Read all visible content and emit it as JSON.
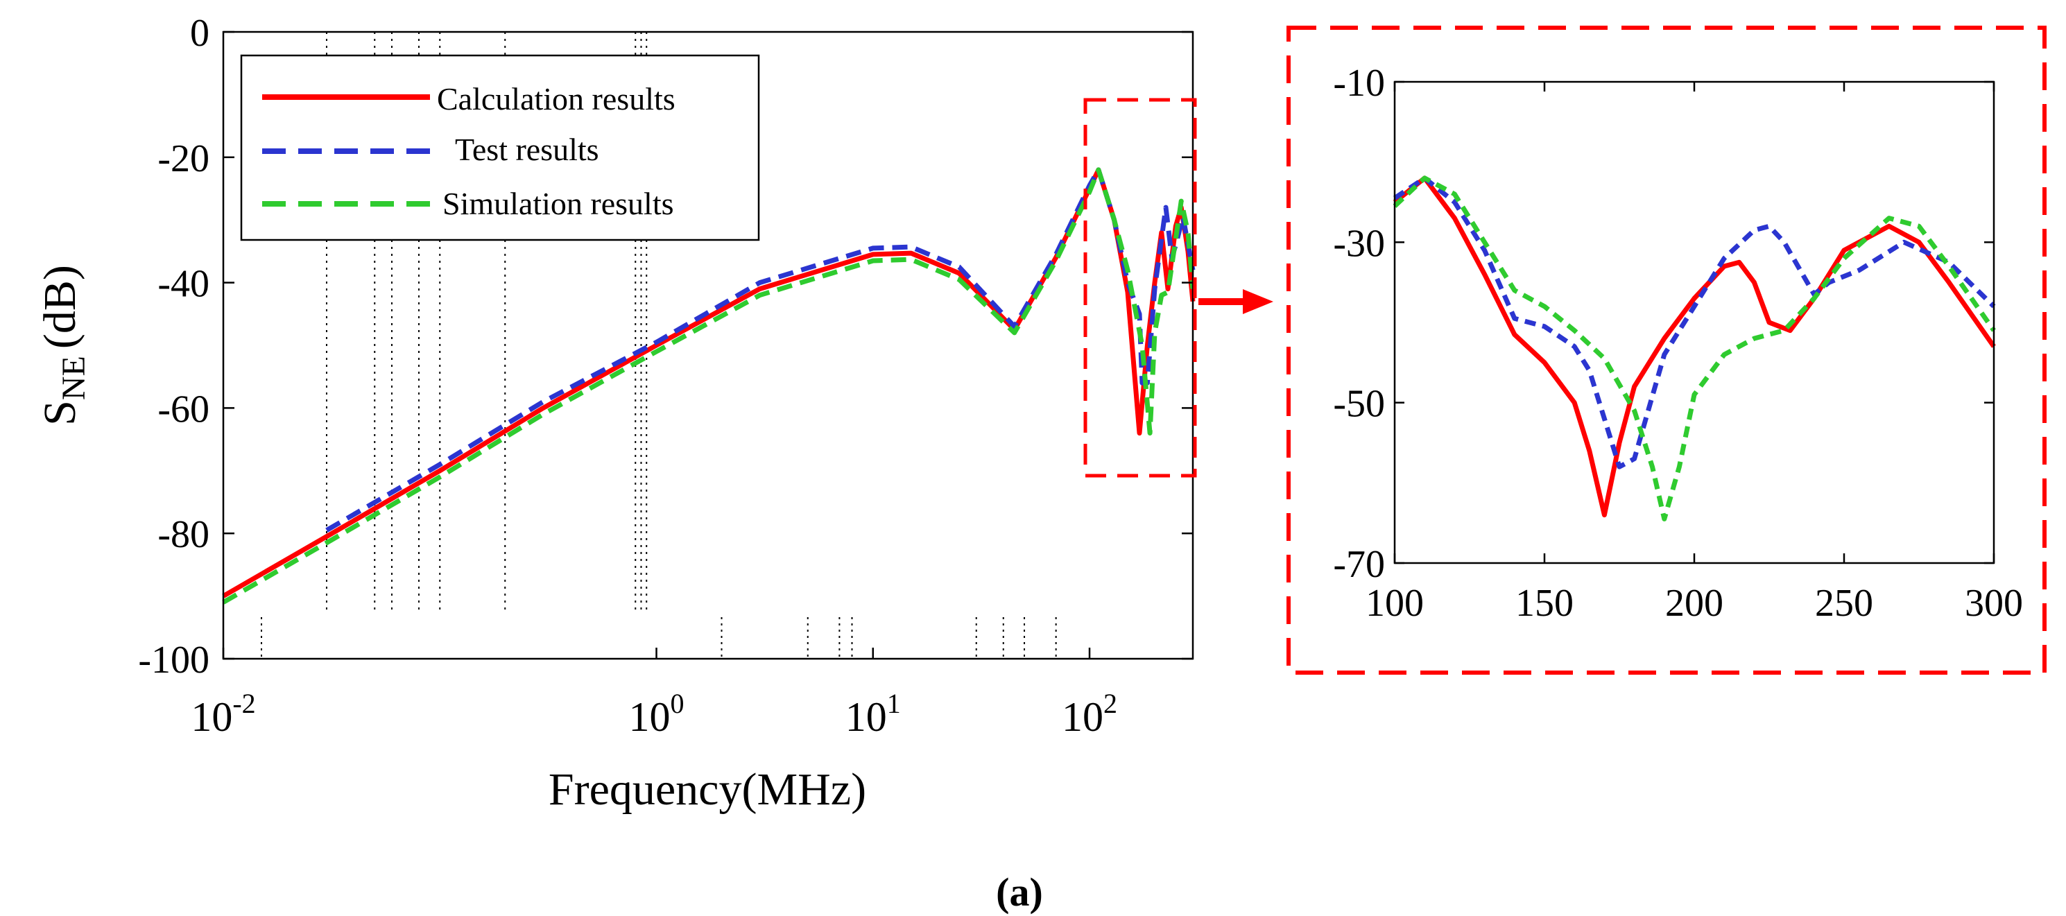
{
  "panel_label": "(a)",
  "colors": {
    "calculation": "#ff0000",
    "test": "#2b35d0",
    "simulation": "#2fcb2f",
    "zoom_box": "#ff0000",
    "axis": "#000000"
  },
  "chart_data": [
    {
      "type": "line",
      "title": "",
      "xlabel": "Frequency(MHz)",
      "ylabel_main": "S",
      "ylabel_sub": "NE",
      "ylabel_unit": "(dB)",
      "xscale": "log",
      "xlim": [
        0.01,
        300
      ],
      "ylim": [
        -100,
        0
      ],
      "x_tick_labels": [
        {
          "value": 0.01,
          "base": "10",
          "exp": "-2"
        },
        {
          "value": 1,
          "base": "10",
          "exp": "0"
        },
        {
          "value": 10,
          "base": "10",
          "exp": "1"
        },
        {
          "value": 100,
          "base": "10",
          "exp": "2"
        }
      ],
      "y_ticks": [
        0,
        -20,
        -40,
        -60,
        -80,
        -100
      ],
      "y_tick_labels": [
        "0",
        "-20",
        "-40",
        "-60",
        "-80",
        "-100"
      ],
      "legend_position": "top-left",
      "legend": [
        "Calculation results",
        "Test results",
        "Simulation results"
      ],
      "grid_lines_x": [
        0.03,
        0.05,
        0.06,
        0.08,
        0.1,
        0.2,
        0.8,
        0.85,
        0.9
      ],
      "minor_marks_x": [
        0.015,
        2,
        5,
        7,
        8,
        30,
        40,
        50,
        70
      ],
      "series": [
        {
          "name": "Calculation results",
          "style": "solid",
          "x": [
            0.01,
            0.03,
            0.1,
            0.3,
            1,
            3,
            10,
            15,
            25,
            45,
            70,
            100,
            110,
            130,
            150,
            170,
            185,
            200,
            215,
            230,
            250,
            265,
            285,
            300
          ],
          "y": [
            -90,
            -80.5,
            -70,
            -60,
            -50,
            -41,
            -35.5,
            -35.3,
            -38.5,
            -47.5,
            -36,
            -25,
            -22,
            -30,
            -41.5,
            -64,
            -50,
            -40,
            -32,
            -41,
            -31,
            -28,
            -35,
            -43
          ]
        },
        {
          "name": "Test results",
          "style": "dashed",
          "x": [
            0.03,
            0.1,
            0.3,
            1,
            3,
            10,
            15,
            25,
            45,
            70,
            100,
            110,
            130,
            150,
            170,
            175,
            185,
            200,
            225,
            240,
            250,
            270,
            300
          ],
          "y": [
            -79.5,
            -69,
            -59,
            -49.5,
            -40,
            -34.5,
            -34.3,
            -37.5,
            -47,
            -35.5,
            -24.5,
            -22,
            -30,
            -40,
            -45,
            -56,
            -56,
            -41,
            -28,
            -36,
            -34,
            -29.5,
            -38
          ]
        },
        {
          "name": "Simulation results",
          "style": "dashed",
          "x": [
            0.01,
            0.03,
            0.1,
            0.3,
            1,
            3,
            10,
            15,
            25,
            45,
            70,
            100,
            110,
            130,
            150,
            175,
            190,
            200,
            215,
            230,
            250,
            265,
            285,
            300
          ],
          "y": [
            -91,
            -81.5,
            -71,
            -61,
            -51,
            -42,
            -36.5,
            -36.3,
            -39.5,
            -48,
            -36.5,
            -25.5,
            -22,
            -30,
            -38,
            -50,
            -64,
            -48,
            -42,
            -41.5,
            -33,
            -27,
            -32,
            -41
          ]
        }
      ]
    },
    {
      "type": "line",
      "title": "",
      "xscale": "linear",
      "xlim": [
        100,
        300
      ],
      "ylim": [
        -70,
        -10
      ],
      "x_ticks": [
        100,
        150,
        200,
        250,
        300
      ],
      "x_tick_labels": [
        "100",
        "150",
        "200",
        "250",
        "300"
      ],
      "y_ticks": [
        -10,
        -30,
        -50,
        -70
      ],
      "y_tick_labels": [
        "-10",
        "-30",
        "-50",
        "-70"
      ],
      "series": [
        {
          "name": "Calculation results",
          "style": "solid",
          "x": [
            100,
            110,
            120,
            130,
            140,
            150,
            160,
            165,
            170,
            175,
            180,
            190,
            200,
            210,
            215,
            220,
            225,
            232,
            240,
            250,
            265,
            275,
            285,
            300
          ],
          "y": [
            -25,
            -22,
            -27,
            -34,
            -41.5,
            -45,
            -50,
            -56,
            -64,
            -55,
            -48,
            -42,
            -37,
            -33,
            -32.5,
            -35,
            -40,
            -41,
            -37,
            -31,
            -28,
            -30,
            -35,
            -43
          ]
        },
        {
          "name": "Test results",
          "style": "dashed",
          "x": [
            100,
            110,
            120,
            130,
            140,
            150,
            160,
            165,
            170,
            175,
            180,
            190,
            200,
            210,
            220,
            225,
            230,
            240,
            245,
            255,
            270,
            285,
            300
          ],
          "y": [
            -24.5,
            -22,
            -25,
            -31,
            -39.5,
            -40.5,
            -43,
            -46,
            -52,
            -58,
            -57,
            -44,
            -38,
            -32,
            -28.5,
            -28,
            -30,
            -36.5,
            -35,
            -33.5,
            -30,
            -32.5,
            -38
          ]
        },
        {
          "name": "Simulation results",
          "style": "dashed",
          "x": [
            100,
            110,
            120,
            130,
            140,
            150,
            160,
            170,
            180,
            186,
            190,
            195,
            200,
            210,
            220,
            230,
            240,
            250,
            265,
            275,
            285,
            300
          ],
          "y": [
            -25.5,
            -22,
            -24,
            -30,
            -36,
            -38,
            -41,
            -44.5,
            -51,
            -58,
            -64.5,
            -58,
            -49,
            -44,
            -42,
            -41,
            -37,
            -32,
            -27,
            -28,
            -33,
            -41
          ]
        }
      ]
    }
  ]
}
